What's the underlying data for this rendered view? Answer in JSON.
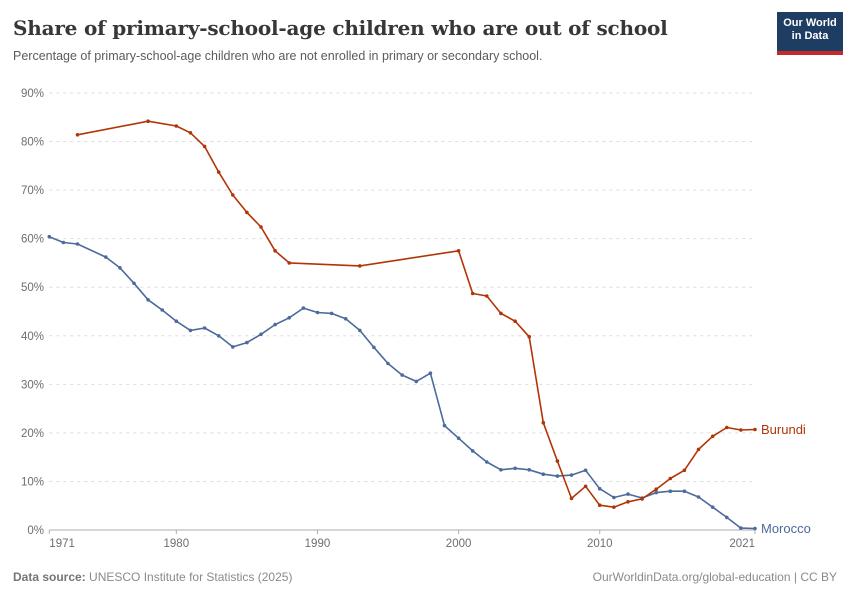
{
  "header": {
    "title": "Share of primary-school-age children who are out of school",
    "subtitle": "Percentage of primary-school-age children who are not enrolled in primary or secondary school.",
    "logo": {
      "line1": "Our World",
      "line2": "in Data",
      "bg_color": "#1d3d63",
      "bar_color": "#c5292a"
    }
  },
  "footer": {
    "source_label": "Data source:",
    "source_text": " UNESCO Institute for Statistics (2025)",
    "attribution": "OurWorldinData.org/global-education | CC BY"
  },
  "chart_data": {
    "type": "line",
    "title": "Share of primary-school-age children who are out of school",
    "xlabel": "",
    "ylabel": "",
    "xlim": [
      1971,
      2021
    ],
    "ylim": [
      0,
      90
    ],
    "grid": "horizontal-dashed",
    "legend_position": "line-end-labels",
    "x_ticks": [
      1971,
      1980,
      1990,
      2000,
      2010,
      2021
    ],
    "x_tick_labels": [
      "1971",
      "1980",
      "1990",
      "2000",
      "2010",
      "2021"
    ],
    "y_ticks": [
      0,
      10,
      20,
      30,
      40,
      50,
      60,
      70,
      80,
      90
    ],
    "y_tick_labels": [
      "0%",
      "10%",
      "20%",
      "30%",
      "40%",
      "50%",
      "60%",
      "70%",
      "80%",
      "90%"
    ],
    "series": [
      {
        "name": "Morocco",
        "color": "#4C6A9C",
        "points": [
          [
            1971,
            60.4
          ],
          [
            1972,
            59.2
          ],
          [
            1973,
            58.9
          ],
          [
            1975,
            56.2
          ],
          [
            1976,
            54.0
          ],
          [
            1977,
            50.8
          ],
          [
            1978,
            47.4
          ],
          [
            1979,
            45.3
          ],
          [
            1980,
            43.0
          ],
          [
            1981,
            41.1
          ],
          [
            1982,
            41.6
          ],
          [
            1983,
            40.0
          ],
          [
            1984,
            37.7
          ],
          [
            1985,
            38.6
          ],
          [
            1986,
            40.3
          ],
          [
            1987,
            42.3
          ],
          [
            1988,
            43.7
          ],
          [
            1989,
            45.7
          ],
          [
            1990,
            44.8
          ],
          [
            1991,
            44.6
          ],
          [
            1992,
            43.5
          ],
          [
            1993,
            41.1
          ],
          [
            1994,
            37.6
          ],
          [
            1995,
            34.3
          ],
          [
            1996,
            31.9
          ],
          [
            1997,
            30.6
          ],
          [
            1998,
            32.3
          ],
          [
            1999,
            21.5
          ],
          [
            2000,
            18.9
          ],
          [
            2001,
            16.3
          ],
          [
            2002,
            14.0
          ],
          [
            2003,
            12.4
          ],
          [
            2004,
            12.7
          ],
          [
            2005,
            12.4
          ],
          [
            2006,
            11.5
          ],
          [
            2007,
            11.1
          ],
          [
            2008,
            11.3
          ],
          [
            2009,
            12.3
          ],
          [
            2010,
            8.5
          ],
          [
            2011,
            6.7
          ],
          [
            2012,
            7.4
          ],
          [
            2013,
            6.6
          ],
          [
            2014,
            7.7
          ],
          [
            2015,
            8.0
          ],
          [
            2016,
            8.0
          ],
          [
            2017,
            6.8
          ],
          [
            2018,
            4.7
          ],
          [
            2019,
            2.6
          ],
          [
            2020,
            0.4
          ],
          [
            2021,
            0.3
          ]
        ]
      },
      {
        "name": "Burundi",
        "color": "#B13507",
        "points": [
          [
            1973,
            81.4
          ],
          [
            1978,
            84.2
          ],
          [
            1980,
            83.2
          ],
          [
            1981,
            81.8
          ],
          [
            1982,
            79.0
          ],
          [
            1983,
            73.7
          ],
          [
            1984,
            69.0
          ],
          [
            1985,
            65.4
          ],
          [
            1986,
            62.4
          ],
          [
            1987,
            57.5
          ],
          [
            1988,
            55.0
          ],
          [
            1993,
            54.4
          ],
          [
            2000,
            57.5
          ],
          [
            2001,
            48.7
          ],
          [
            2002,
            48.2
          ],
          [
            2003,
            44.6
          ],
          [
            2004,
            43.0
          ],
          [
            2005,
            39.8
          ],
          [
            2006,
            22.1
          ],
          [
            2007,
            14.2
          ],
          [
            2008,
            6.5
          ],
          [
            2009,
            9.0
          ],
          [
            2010,
            5.1
          ],
          [
            2011,
            4.7
          ],
          [
            2012,
            5.8
          ],
          [
            2013,
            6.4
          ],
          [
            2014,
            8.4
          ],
          [
            2015,
            10.6
          ],
          [
            2016,
            12.3
          ],
          [
            2017,
            16.6
          ],
          [
            2018,
            19.3
          ],
          [
            2019,
            21.1
          ],
          [
            2020,
            20.6
          ],
          [
            2021,
            20.7
          ]
        ]
      }
    ],
    "style": {
      "gridline_color": "#dddddd",
      "axis_color": "#adadad",
      "tick_label_color": "#6e6e6e"
    }
  }
}
